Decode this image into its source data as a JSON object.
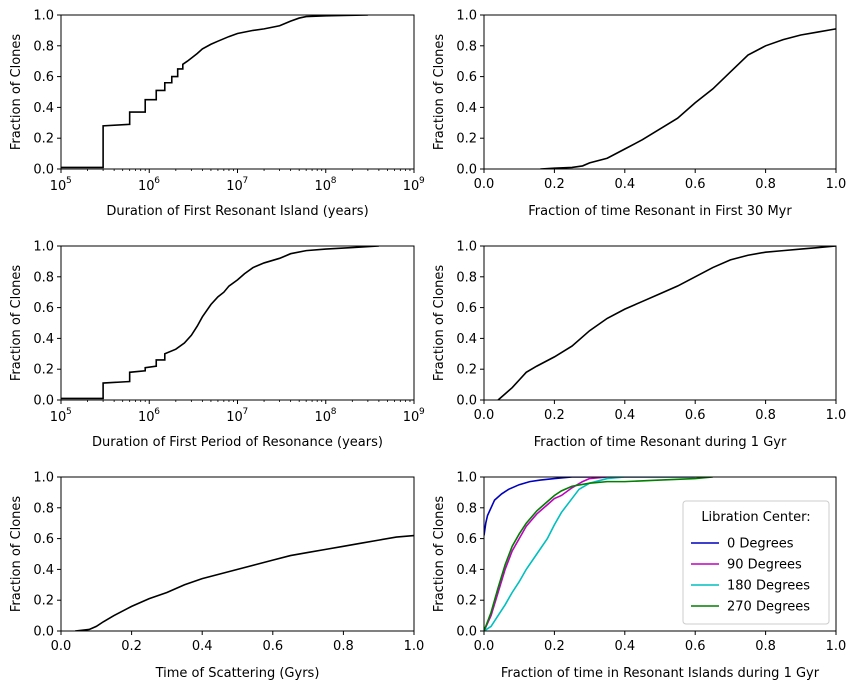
{
  "chart_data": [
    {
      "type": "line",
      "xscale": "log",
      "xlim": [
        100000,
        1000000000
      ],
      "ylim": [
        0,
        1
      ],
      "xlabel": "Duration of First Resonant Island (years)",
      "ylabel": "Fraction of Clones",
      "xticks": [
        "10",
        "10",
        "10",
        "10",
        "10"
      ],
      "xtick_exponents": [
        "5",
        "6",
        "7",
        "8",
        "9"
      ],
      "yticks": [
        "0.0",
        "0.2",
        "0.4",
        "0.6",
        "0.8",
        "1.0"
      ],
      "series": [
        {
          "name": "all",
          "color": "#000000",
          "step": true,
          "x": [
            100000,
            300000,
            300000,
            600000,
            600000,
            900000,
            900000,
            1200000,
            1200000,
            1500000,
            1500000,
            1800000,
            1800000,
            2100000,
            2100000,
            2400000,
            2400000,
            2700000,
            3000000,
            3500000,
            4000000,
            5000000,
            6000000,
            8000000,
            10000000,
            15000000,
            20000000,
            30000000,
            40000000,
            50000000,
            60000000,
            100000000,
            300000000
          ],
          "y": [
            0.01,
            0.01,
            0.28,
            0.29,
            0.37,
            0.37,
            0.45,
            0.45,
            0.51,
            0.51,
            0.56,
            0.56,
            0.6,
            0.6,
            0.65,
            0.65,
            0.68,
            0.7,
            0.72,
            0.75,
            0.78,
            0.81,
            0.83,
            0.86,
            0.88,
            0.9,
            0.91,
            0.93,
            0.96,
            0.98,
            0.99,
            0.995,
            1.0
          ]
        }
      ]
    },
    {
      "type": "line",
      "xscale": "linear",
      "xlim": [
        0,
        1
      ],
      "ylim": [
        0,
        1
      ],
      "xlabel": "Fraction of time Resonant in First 30 Myr",
      "ylabel": "Fraction of Clones",
      "xticks": [
        "0.0",
        "0.2",
        "0.4",
        "0.6",
        "0.8",
        "1.0"
      ],
      "yticks": [
        "0.0",
        "0.2",
        "0.4",
        "0.6",
        "0.8",
        "1.0"
      ],
      "series": [
        {
          "name": "all",
          "color": "#000000",
          "step": false,
          "x": [
            0.16,
            0.2,
            0.25,
            0.28,
            0.3,
            0.35,
            0.4,
            0.45,
            0.5,
            0.55,
            0.6,
            0.65,
            0.7,
            0.75,
            0.8,
            0.85,
            0.9,
            0.95,
            1.0
          ],
          "y": [
            0.0,
            0.005,
            0.01,
            0.02,
            0.04,
            0.07,
            0.13,
            0.19,
            0.26,
            0.33,
            0.43,
            0.52,
            0.63,
            0.74,
            0.8,
            0.84,
            0.87,
            0.89,
            0.91
          ]
        }
      ]
    },
    {
      "type": "line",
      "xscale": "log",
      "xlim": [
        100000,
        1000000000
      ],
      "ylim": [
        0,
        1
      ],
      "xlabel": "Duration of First Period of Resonance (years)",
      "ylabel": "Fraction of Clones",
      "xticks": [
        "10",
        "10",
        "10",
        "10",
        "10"
      ],
      "xtick_exponents": [
        "5",
        "6",
        "7",
        "8",
        "9"
      ],
      "yticks": [
        "0.0",
        "0.2",
        "0.4",
        "0.6",
        "0.8",
        "1.0"
      ],
      "series": [
        {
          "name": "all",
          "color": "#000000",
          "step": true,
          "x": [
            100000,
            300000,
            300000,
            600000,
            600000,
            900000,
            900000,
            1200000,
            1200000,
            1500000,
            1500000,
            2000000,
            2500000,
            3000000,
            3500000,
            4000000,
            5000000,
            6000000,
            7000000,
            8000000,
            10000000,
            12000000,
            15000000,
            20000000,
            30000000,
            40000000,
            60000000,
            100000000,
            200000000,
            400000000
          ],
          "y": [
            0.01,
            0.01,
            0.11,
            0.12,
            0.18,
            0.19,
            0.21,
            0.22,
            0.26,
            0.26,
            0.3,
            0.33,
            0.37,
            0.42,
            0.48,
            0.54,
            0.62,
            0.67,
            0.7,
            0.74,
            0.78,
            0.82,
            0.86,
            0.89,
            0.92,
            0.95,
            0.97,
            0.98,
            0.99,
            1.0
          ]
        }
      ]
    },
    {
      "type": "line",
      "xscale": "linear",
      "xlim": [
        0,
        1
      ],
      "ylim": [
        0,
        1
      ],
      "xlabel": "Fraction of time Resonant during 1 Gyr",
      "ylabel": "Fraction of Clones",
      "xticks": [
        "0.0",
        "0.2",
        "0.4",
        "0.6",
        "0.8",
        "1.0"
      ],
      "yticks": [
        "0.0",
        "0.2",
        "0.4",
        "0.6",
        "0.8",
        "1.0"
      ],
      "series": [
        {
          "name": "all",
          "color": "#000000",
          "step": false,
          "x": [
            0.04,
            0.06,
            0.08,
            0.1,
            0.12,
            0.15,
            0.2,
            0.25,
            0.3,
            0.35,
            0.4,
            0.45,
            0.5,
            0.55,
            0.6,
            0.65,
            0.7,
            0.75,
            0.8,
            0.85,
            0.9,
            0.95,
            1.0
          ],
          "y": [
            0.0,
            0.04,
            0.08,
            0.13,
            0.18,
            0.22,
            0.28,
            0.35,
            0.45,
            0.53,
            0.59,
            0.64,
            0.69,
            0.74,
            0.8,
            0.86,
            0.91,
            0.94,
            0.96,
            0.97,
            0.98,
            0.99,
            1.0
          ]
        }
      ]
    },
    {
      "type": "line",
      "xscale": "linear",
      "xlim": [
        0,
        1
      ],
      "ylim": [
        0,
        1
      ],
      "xlabel": "Time of Scattering (Gyrs)",
      "ylabel": "Fraction of Clones",
      "xticks": [
        "0.0",
        "0.2",
        "0.4",
        "0.6",
        "0.8",
        "1.0"
      ],
      "yticks": [
        "0.0",
        "0.2",
        "0.4",
        "0.6",
        "0.8",
        "1.0"
      ],
      "series": [
        {
          "name": "all",
          "color": "#000000",
          "step": false,
          "x": [
            0.04,
            0.08,
            0.1,
            0.12,
            0.15,
            0.2,
            0.25,
            0.3,
            0.35,
            0.4,
            0.45,
            0.5,
            0.55,
            0.6,
            0.65,
            0.7,
            0.75,
            0.8,
            0.85,
            0.9,
            0.95,
            1.0
          ],
          "y": [
            0.0,
            0.01,
            0.03,
            0.06,
            0.1,
            0.16,
            0.21,
            0.25,
            0.3,
            0.34,
            0.37,
            0.4,
            0.43,
            0.46,
            0.49,
            0.51,
            0.53,
            0.55,
            0.57,
            0.59,
            0.61,
            0.62
          ]
        }
      ]
    },
    {
      "type": "line",
      "xscale": "linear",
      "xlim": [
        0,
        1
      ],
      "ylim": [
        0,
        1
      ],
      "xlabel": "Fraction of time in Resonant Islands during 1 Gyr",
      "ylabel": "Fraction of Clones",
      "xticks": [
        "0.0",
        "0.2",
        "0.4",
        "0.6",
        "0.8",
        "1.0"
      ],
      "yticks": [
        "0.0",
        "0.2",
        "0.4",
        "0.6",
        "0.8",
        "1.0"
      ],
      "legend": {
        "title": "Libration Center:",
        "loc": "lower-right"
      },
      "series": [
        {
          "name": "0 Degrees",
          "color": "#0000bf",
          "step": false,
          "x": [
            0.0,
            0.005,
            0.01,
            0.02,
            0.03,
            0.05,
            0.07,
            0.1,
            0.13,
            0.16,
            0.2,
            0.25,
            0.3
          ],
          "y": [
            0.62,
            0.7,
            0.75,
            0.8,
            0.85,
            0.89,
            0.92,
            0.95,
            0.97,
            0.98,
            0.99,
            1.0,
            1.0
          ]
        },
        {
          "name": "90 Degrees",
          "color": "#bf00bf",
          "step": false,
          "x": [
            0.0,
            0.02,
            0.04,
            0.06,
            0.08,
            0.1,
            0.12,
            0.15,
            0.18,
            0.2,
            0.22,
            0.25,
            0.28,
            0.3,
            0.35,
            0.4,
            0.6
          ],
          "y": [
            0.0,
            0.1,
            0.25,
            0.4,
            0.52,
            0.6,
            0.68,
            0.76,
            0.82,
            0.86,
            0.88,
            0.93,
            0.97,
            0.99,
            1.0,
            1.0,
            1.0
          ]
        },
        {
          "name": "180 Degrees",
          "color": "#00bfbf",
          "step": false,
          "x": [
            0.0,
            0.02,
            0.04,
            0.06,
            0.08,
            0.1,
            0.12,
            0.15,
            0.18,
            0.2,
            0.22,
            0.25,
            0.27,
            0.3,
            0.35,
            0.4,
            0.6
          ],
          "y": [
            0.0,
            0.03,
            0.1,
            0.17,
            0.25,
            0.32,
            0.4,
            0.5,
            0.6,
            0.69,
            0.77,
            0.86,
            0.92,
            0.96,
            0.99,
            1.0,
            1.0
          ]
        },
        {
          "name": "270 Degrees",
          "color": "#007f00",
          "step": false,
          "x": [
            0.0,
            0.02,
            0.04,
            0.06,
            0.08,
            0.1,
            0.12,
            0.15,
            0.18,
            0.2,
            0.22,
            0.25,
            0.3,
            0.35,
            0.4,
            0.5,
            0.6,
            0.65
          ],
          "y": [
            0.0,
            0.12,
            0.28,
            0.43,
            0.55,
            0.63,
            0.7,
            0.78,
            0.84,
            0.88,
            0.91,
            0.94,
            0.96,
            0.97,
            0.97,
            0.98,
            0.99,
            1.0
          ]
        }
      ]
    }
  ]
}
